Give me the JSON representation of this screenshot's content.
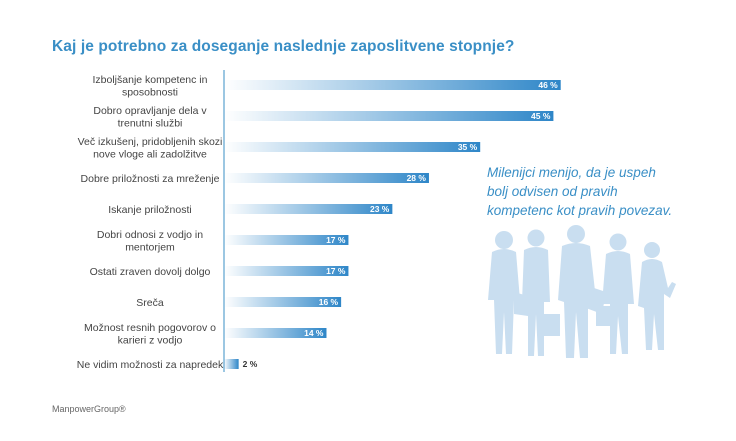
{
  "title": "Kaj je potrebno za doseganje naslednje zaposlitvene stopnje?",
  "quote_lines": [
    "Milenijci menijo, da je uspeh",
    "bolj odvisen od pravih",
    "kompetenc kot pravih povezav."
  ],
  "footer": "ManpowerGroup®",
  "colors": {
    "title": "#3a8fc6",
    "bar_dark": "#2e86c8",
    "bar_light": "#ffffff",
    "value_text_on_bar": "#ffffff",
    "value_text_outside": "#333333",
    "axis": "#3a8fc6",
    "silhouettes": "#c9def0"
  },
  "chart_data": {
    "type": "bar",
    "orientation": "horizontal",
    "title": "Kaj je potrebno za doseganje naslednje zaposlitvene stopnje?",
    "categories": [
      [
        "Izboljšanje kompetenc in",
        "sposobnosti"
      ],
      [
        "Dobro opravljanje dela v",
        "trenutni službi"
      ],
      [
        "Več izkušenj, pridobljenih skozi",
        "nove vloge ali zadolžitve"
      ],
      [
        "Dobre priložnosti za mreženje"
      ],
      [
        "Iskanje priložnosti"
      ],
      [
        "Dobri odnosi z vodjo in",
        "mentorjem"
      ],
      [
        "Ostati zraven dovolj dolgo"
      ],
      [
        "Sreča"
      ],
      [
        "Možnost resnih pogovorov o",
        "karieri z vodjo"
      ],
      [
        "Ne vidim možnosti za napredek"
      ]
    ],
    "values": [
      46,
      45,
      35,
      28,
      23,
      17,
      17,
      16,
      14,
      2
    ],
    "value_labels": [
      "46 %",
      "45 %",
      "35 %",
      "28 %",
      "23 %",
      "17 %",
      "17 %",
      "16 %",
      "14 %",
      "2 %"
    ],
    "xlim": [
      0,
      50
    ],
    "grid": false,
    "legend": "none"
  }
}
